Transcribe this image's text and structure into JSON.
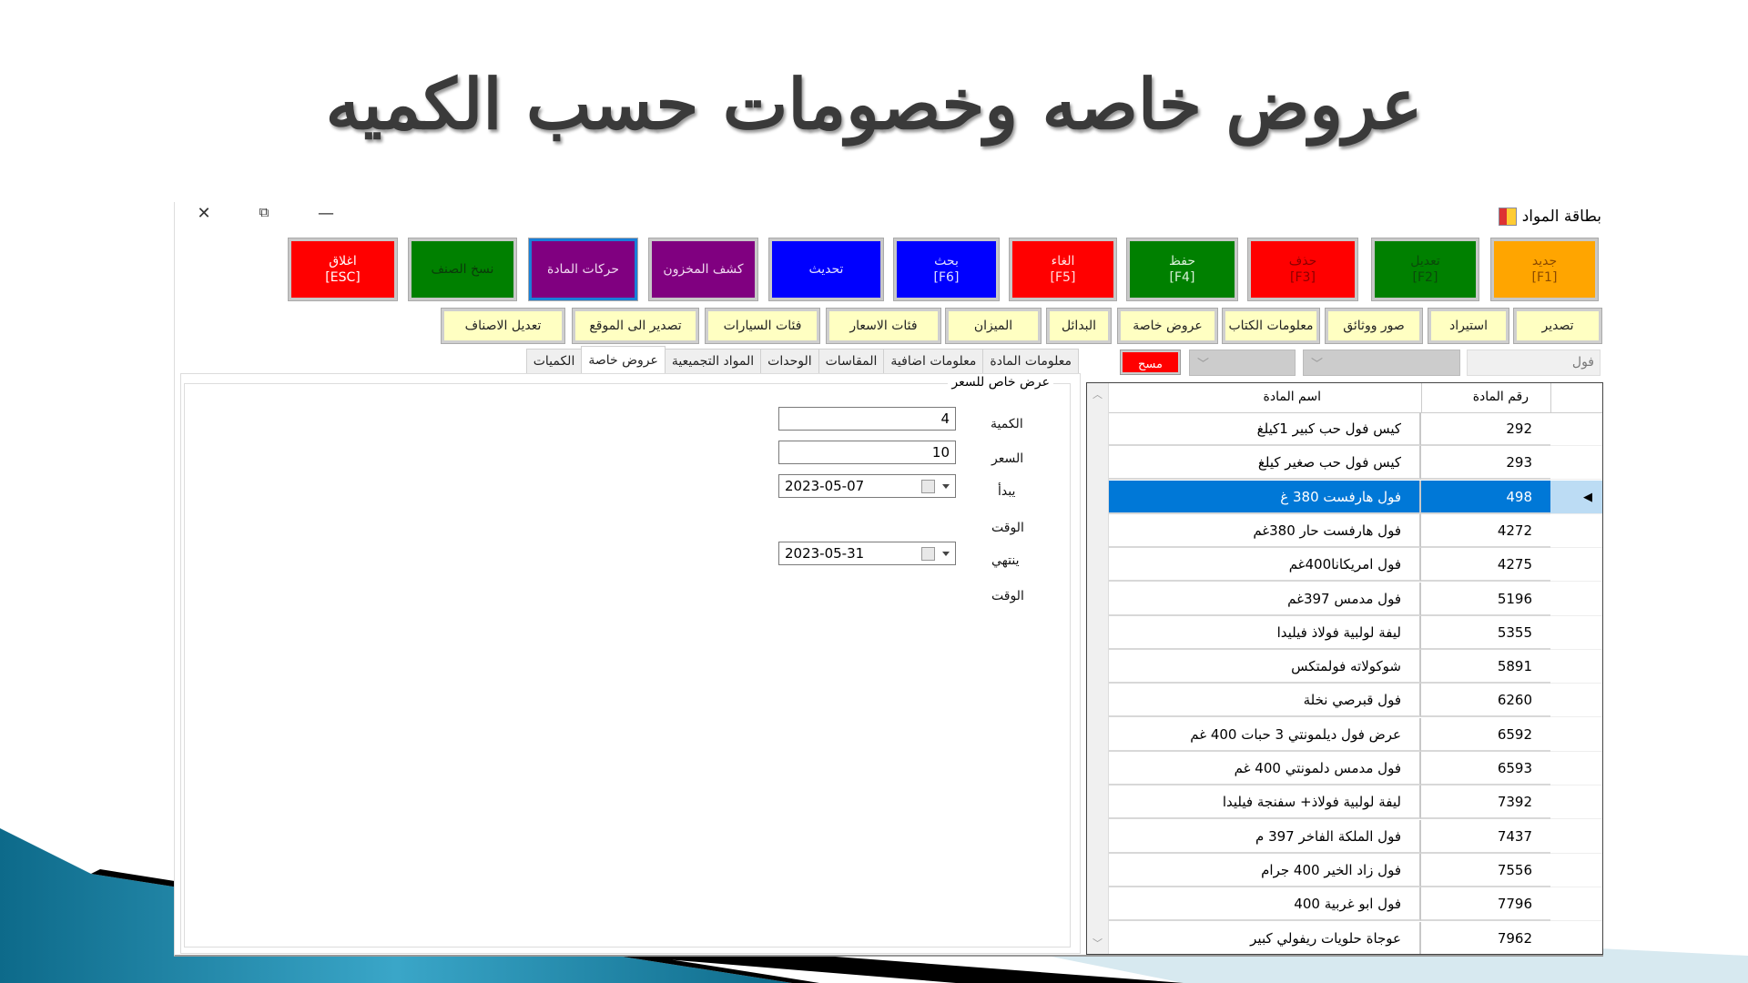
{
  "slide": {
    "title": "عروض خاصه وخصومات حسب الكميه"
  },
  "window": {
    "title": "بطاقة المواد",
    "controls": {
      "close": "✕",
      "restore": "⧉",
      "minimize": "—"
    }
  },
  "toolbar": {
    "main_buttons": [
      {
        "label": "جديد",
        "key": "[F1]",
        "bg": "#ffa500",
        "fg": "#8a4a00"
      },
      {
        "label": "تعديل",
        "key": "[F2]",
        "bg": "#008000",
        "fg": "#0a4a0a"
      },
      {
        "label": "حذف",
        "key": "[F3]",
        "bg": "#ff0000",
        "fg": "#8a0000"
      },
      {
        "label": "حفظ",
        "key": "[F4]",
        "bg": "#008000",
        "fg": "#d8f0d8"
      },
      {
        "label": "الغاء",
        "key": "[F5]",
        "bg": "#ff0000",
        "fg": "#ffe0e0"
      },
      {
        "label": "بحث",
        "key": "[F6]",
        "bg": "#0000ff",
        "fg": "#e0e0ff"
      },
      {
        "label": "تحديث",
        "key": "",
        "bg": "#0000ff",
        "fg": "#e0e0ff"
      },
      {
        "label": "كشف المخزون",
        "key": "",
        "bg": "#800080",
        "fg": "#f0d8f0"
      },
      {
        "label": "حركات المادة",
        "key": "",
        "bg": "#800080",
        "fg": "#f0d8f0"
      },
      {
        "label": "نسخ الصنف",
        "key": "",
        "bg": "#008000",
        "fg": "#0a3a0a"
      },
      {
        "label": "اغلاق",
        "key": "[ESC]",
        "bg": "#ff0000",
        "fg": "#ffffff"
      }
    ],
    "secondary_buttons": [
      "تصدير",
      "استيراد",
      "صور ووثائق",
      "معلومات الكتاب",
      "عروض خاصة",
      "البدائل",
      "الميزان",
      "فئات الاسعار",
      "فئات السيارات",
      "تصدير الى الموقع",
      "تعديل الاصناف"
    ]
  },
  "tabs": [
    {
      "label": "معلومات المادة",
      "active": false
    },
    {
      "label": "معلومات اضافية",
      "active": false
    },
    {
      "label": "المقاسات",
      "active": false
    },
    {
      "label": "الوحدات",
      "active": false
    },
    {
      "label": "المواد التجميعية",
      "active": false
    },
    {
      "label": "عروض خاصة",
      "active": true
    },
    {
      "label": "الكميات",
      "active": false
    }
  ],
  "special_offer": {
    "group_title": "عرض خاص للسعر",
    "quantity_label": "الكمية",
    "quantity": "4",
    "price_label": "السعر",
    "price": "10",
    "start_label": "يبدأ",
    "start_date": "2023-05-07",
    "start_time_label": "الوقت",
    "end_label": "ينتهي",
    "end_date": "2023-05-31",
    "end_time_label": "الوقت"
  },
  "filter": {
    "search_value": "فول",
    "clear_label": "مسح"
  },
  "grid": {
    "columns": {
      "code": "رقم المادة",
      "name": "اسم المادة"
    },
    "selected_code": "498",
    "rows": [
      {
        "code": "292",
        "name": "كيس فول حب كبير 1كيلغ"
      },
      {
        "code": "293",
        "name": "كيس فول حب صغير كيلغ"
      },
      {
        "code": "498",
        "name": "فول هارفست 380 غ"
      },
      {
        "code": "4272",
        "name": "فول هارفست حار 380غم"
      },
      {
        "code": "4275",
        "name": "فول امريكانا400غم"
      },
      {
        "code": "5196",
        "name": "فول مدمس 397غم"
      },
      {
        "code": "5355",
        "name": "ليفة لولبية فولاذ فيليدا"
      },
      {
        "code": "5891",
        "name": "شوكولاته فولمتكس"
      },
      {
        "code": "6260",
        "name": "فول قبرصي نخلة"
      },
      {
        "code": "6592",
        "name": "عرض فول ديلمونتي 3 حبات 400 غم"
      },
      {
        "code": "6593",
        "name": "فول مدمس دلمونتي 400 غم"
      },
      {
        "code": "7392",
        "name": "ليفة لولبية فولاذ+ سفنجة فيليدا"
      },
      {
        "code": "7437",
        "name": "فول الملكة الفاخر 397 م"
      },
      {
        "code": "7556",
        "name": "فول زاد الخير 400 جرام"
      },
      {
        "code": "7796",
        "name": "فول ابو غربية 400"
      },
      {
        "code": "7962",
        "name": "عوجاة حلويات ريفولي كبير"
      }
    ]
  }
}
